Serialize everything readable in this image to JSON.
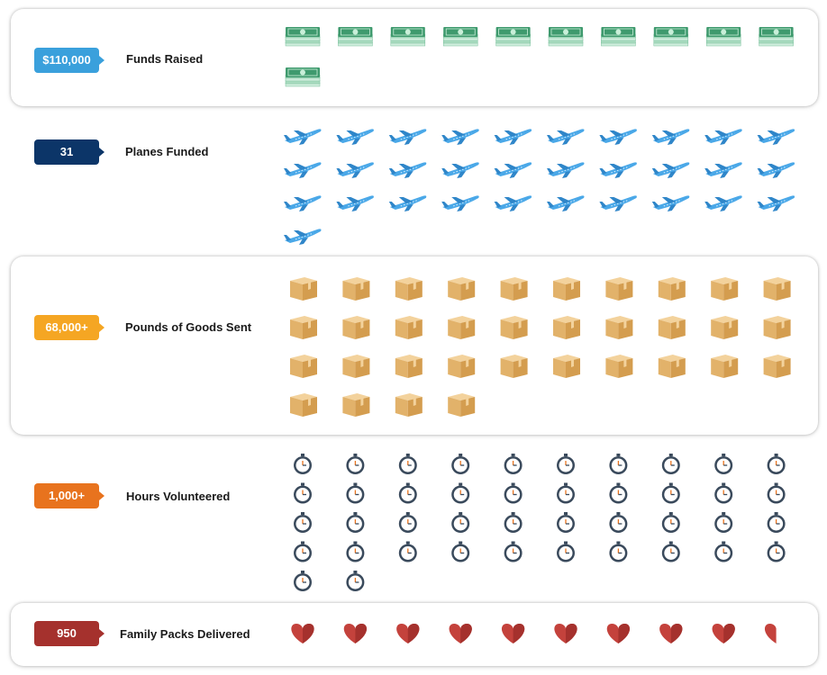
{
  "colors": {
    "funds": "#3aa0dc",
    "planes": "#0c3568",
    "goods": "#f5a623",
    "hours": "#e8731e",
    "packs": "#a5312d"
  },
  "chart_data": {
    "type": "pictograph",
    "rows": [
      {
        "key": "funds",
        "value_label": "$110,000",
        "label": "Funds Raised",
        "icon": "cash-stack-icon",
        "icon_count": 11
      },
      {
        "key": "planes",
        "value_label": "31",
        "label": "Planes Funded",
        "icon": "airplane-icon",
        "icon_count": 31
      },
      {
        "key": "goods",
        "value_label": "68,000+",
        "label": "Pounds of Goods Sent",
        "icon": "box-1-ton-icon",
        "icon_count": 34
      },
      {
        "key": "hours",
        "value_label": "1,000+",
        "label": "Hours Volunteered",
        "icon": "stopwatch-icon",
        "icon_count": 42
      },
      {
        "key": "packs",
        "value_label": "950",
        "label": "Family Packs Delivered",
        "icon": "heart-icon",
        "icon_count": 9.5
      }
    ]
  }
}
